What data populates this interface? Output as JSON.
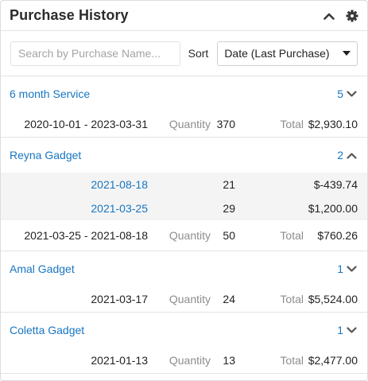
{
  "header": {
    "title": "Purchase History"
  },
  "filters": {
    "search_placeholder": "Search by Purchase Name...",
    "sort_label": "Sort",
    "sort_value": "Date (Last Purchase)"
  },
  "groups": [
    {
      "name": "6 month Service",
      "count": "5",
      "expanded": false,
      "range": "2020-10-01 - 2023-03-31",
      "quantity_label": "Quantity",
      "quantity": "370",
      "total_label": "Total",
      "total": "$2,930.10"
    },
    {
      "name": "Reyna Gadget",
      "count": "2",
      "expanded": true,
      "details": [
        {
          "date": "2021-08-18",
          "quantity": "21",
          "total": "$-439.74"
        },
        {
          "date": "2021-03-25",
          "quantity": "29",
          "total": "$1,200.00"
        }
      ],
      "range": "2021-03-25 - 2021-08-18",
      "quantity_label": "Quantity",
      "quantity": "50",
      "total_label": "Total",
      "total": "$760.26"
    },
    {
      "name": "Amal Gadget",
      "count": "1",
      "expanded": false,
      "range": "2021-03-17",
      "quantity_label": "Quantity",
      "quantity": "24",
      "total_label": "Total",
      "total": "$5,524.00"
    },
    {
      "name": "Coletta Gadget",
      "count": "1",
      "expanded": false,
      "range": "2021-01-13",
      "quantity_label": "Quantity",
      "quantity": "13",
      "total_label": "Total",
      "total": "$2,477.00"
    }
  ],
  "colors": {
    "link": "#1776c2",
    "muted": "#8d8d8d",
    "detail_bg": "#f4f4f4"
  }
}
